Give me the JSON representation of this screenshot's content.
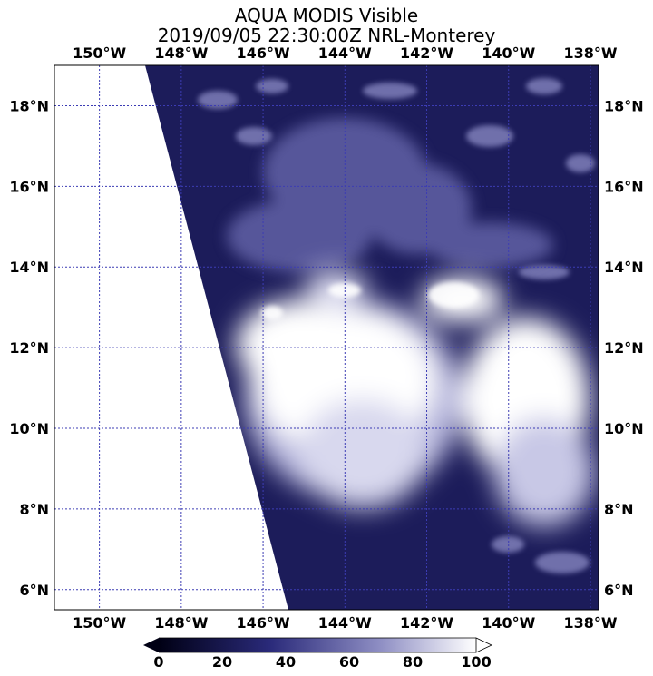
{
  "title": {
    "line1": "AQUA MODIS Visible",
    "line2": "2019/09/05 22:30:00Z NRL-Monterey"
  },
  "axes": {
    "lon_labels": [
      "150°W",
      "148°W",
      "146°W",
      "144°W",
      "142°W",
      "140°W",
      "138°W"
    ],
    "lon_values": [
      -150,
      -148,
      -146,
      -144,
      -142,
      -140,
      -138
    ],
    "lat_labels": [
      "18°N",
      "16°N",
      "14°N",
      "12°N",
      "10°N",
      "8°N",
      "6°N"
    ],
    "lat_values": [
      18,
      16,
      14,
      12,
      10,
      8,
      6
    ],
    "lon_range": [
      -151.1,
      -137.8
    ],
    "lat_range": [
      5.5,
      19.0
    ],
    "grid": true
  },
  "colorbar": {
    "ticks": [
      "0",
      "20",
      "40",
      "60",
      "80",
      "100"
    ],
    "tick_values": [
      0,
      20,
      40,
      60,
      80,
      100
    ],
    "range": [
      0,
      100
    ],
    "color_low": "#000014",
    "color_mid": "#2a2a7a",
    "color_high": "#ffffff"
  },
  "colors": {
    "ocean_dark": "#1c1c5a",
    "cloud_bright": "#ffffff",
    "grid_line": "#3c3cb4",
    "no_data": "#ffffff"
  }
}
